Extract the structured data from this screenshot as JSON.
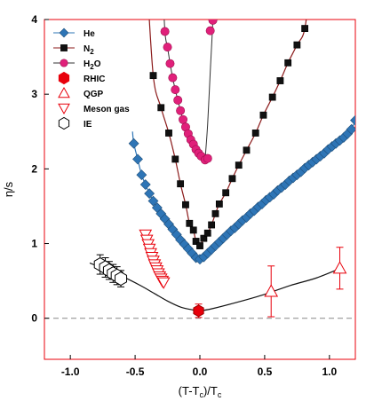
{
  "chart_data": {
    "type": "scatter",
    "xlabel_parts": [
      "(T-T",
      "c",
      ")/T",
      "c"
    ],
    "ylabel_parts": [
      "η/s"
    ],
    "xlim": [
      -1.2,
      1.2
    ],
    "ylim": [
      -0.55,
      4.0
    ],
    "x_ticks": [
      {
        "value": -1.0,
        "label": "-1.0"
      },
      {
        "value": -0.5,
        "label": "-0.5"
      },
      {
        "value": 0.0,
        "label": "0.0"
      },
      {
        "value": 0.5,
        "label": "0.5"
      },
      {
        "value": 1.0,
        "label": "1.0"
      }
    ],
    "y_ticks": [
      {
        "value": 0,
        "label": "0"
      },
      {
        "value": 1,
        "label": "1"
      },
      {
        "value": 2,
        "label": "2"
      },
      {
        "value": 3,
        "label": "3"
      },
      {
        "value": 4,
        "label": "4"
      }
    ],
    "frame_color": "#e8000b",
    "baseline": {
      "y": 0,
      "style": "dashed",
      "color": "#888888"
    },
    "series": [
      {
        "name_parts": [
          "He"
        ],
        "marker": "diamond",
        "color": "#2e75b6",
        "line_color": "#2e75b6",
        "x": [
          -0.51,
          -0.48,
          -0.45,
          -0.42,
          -0.39,
          -0.36,
          -0.33,
          -0.3,
          -0.27,
          -0.24,
          -0.21,
          -0.18,
          -0.15,
          -0.12,
          -0.09,
          -0.06,
          -0.03,
          0.0,
          0.03,
          0.06,
          0.09,
          0.12,
          0.15,
          0.18,
          0.21,
          0.24,
          0.27,
          0.3,
          0.33,
          0.36,
          0.39,
          0.42,
          0.45,
          0.48,
          0.51,
          0.54,
          0.57,
          0.6,
          0.63,
          0.66,
          0.69,
          0.72,
          0.75,
          0.78,
          0.81,
          0.84,
          0.87,
          0.9,
          0.93,
          0.96,
          0.99,
          1.02,
          1.05,
          1.08,
          1.11,
          1.14,
          1.17,
          1.2
        ],
        "y": [
          2.34,
          2.13,
          1.92,
          1.79,
          1.67,
          1.57,
          1.48,
          1.4,
          1.33,
          1.26,
          1.19,
          1.12,
          1.05,
          0.99,
          0.93,
          0.87,
          0.81,
          0.79,
          0.82,
          0.87,
          0.92,
          0.97,
          1.02,
          1.07,
          1.12,
          1.17,
          1.21,
          1.26,
          1.31,
          1.35,
          1.4,
          1.44,
          1.49,
          1.53,
          1.58,
          1.62,
          1.66,
          1.71,
          1.75,
          1.79,
          1.84,
          1.88,
          1.92,
          1.96,
          2.01,
          2.05,
          2.09,
          2.13,
          2.17,
          2.21,
          2.26,
          2.3,
          2.34,
          2.38,
          2.42,
          2.47,
          2.53,
          2.65
        ]
      },
      {
        "name_parts": [
          "N",
          "2"
        ],
        "marker": "square",
        "color": "#111111",
        "line_color": "#8b1a1a",
        "x": [
          -0.36,
          -0.3,
          -0.24,
          -0.19,
          -0.15,
          -0.11,
          -0.08,
          -0.05,
          -0.03,
          0.0,
          0.03,
          0.06,
          0.09,
          0.12,
          0.15,
          0.2,
          0.25,
          0.3,
          0.36,
          0.43,
          0.49,
          0.56,
          0.62,
          0.68,
          0.75,
          0.81
        ],
        "y": [
          3.25,
          2.82,
          2.48,
          2.13,
          1.8,
          1.52,
          1.27,
          1.18,
          1.03,
          0.97,
          1.07,
          1.14,
          1.25,
          1.4,
          1.53,
          1.68,
          1.87,
          2.05,
          2.25,
          2.48,
          2.72,
          2.96,
          3.18,
          3.42,
          3.66,
          3.88
        ]
      },
      {
        "name_parts": [
          "H",
          "2",
          "O"
        ],
        "marker": "circle",
        "color": "#e0207a",
        "line_color": "#333333",
        "x": [
          -0.27,
          -0.25,
          -0.23,
          -0.21,
          -0.19,
          -0.17,
          -0.15,
          -0.13,
          -0.11,
          -0.09,
          -0.07,
          -0.05,
          -0.03,
          -0.01,
          0.01,
          0.04,
          0.06,
          0.08,
          0.1
        ],
        "y": [
          3.84,
          3.63,
          3.41,
          3.22,
          3.06,
          2.92,
          2.78,
          2.66,
          2.56,
          2.47,
          2.39,
          2.33,
          2.26,
          2.21,
          2.17,
          2.12,
          2.14,
          3.85,
          3.99
        ]
      },
      {
        "name_parts": [
          "RHIC"
        ],
        "marker": "hexagon",
        "color": "#e8000b",
        "filled": true,
        "x": [
          -0.01
        ],
        "y": [
          0.1
        ],
        "err": [
          0.09
        ]
      },
      {
        "name_parts": [
          "QGP"
        ],
        "marker": "triangle-up",
        "color": "#e8000b",
        "filled": false,
        "x": [
          0.55,
          1.08
        ],
        "y": [
          0.36,
          0.67
        ],
        "err": [
          0.34,
          0.28
        ]
      },
      {
        "name_parts": [
          "Meson gas"
        ],
        "marker": "triangle-down",
        "color": "#e8000b",
        "filled": false,
        "x": [
          -0.42,
          -0.41,
          -0.4,
          -0.39,
          -0.38,
          -0.37,
          -0.36,
          -0.35,
          -0.34,
          -0.33,
          -0.32,
          -0.31,
          -0.3,
          -0.29,
          -0.28
        ],
        "y": [
          1.12,
          1.05,
          0.99,
          0.93,
          0.87,
          0.82,
          0.77,
          0.72,
          0.68,
          0.64,
          0.6,
          0.56,
          0.53,
          0.5,
          0.48
        ]
      },
      {
        "name_parts": [
          "IE"
        ],
        "marker": "hexagon",
        "color": "#000000",
        "filled": false,
        "x": [
          -0.77,
          -0.73,
          -0.7,
          -0.67,
          -0.64,
          -0.61
        ],
        "y": [
          0.72,
          0.68,
          0.64,
          0.6,
          0.57,
          0.53
        ],
        "err": [
          0.13,
          0.13,
          0.12,
          0.12,
          0.12,
          0.11
        ]
      }
    ],
    "theory_curve": {
      "color": "#111111",
      "x": [
        -0.85,
        -0.75,
        -0.65,
        -0.55,
        -0.45,
        -0.35,
        -0.25,
        -0.15,
        -0.05,
        0.0,
        0.1,
        0.3,
        0.5,
        0.7,
        0.9,
        1.1
      ],
      "y": [
        0.74,
        0.67,
        0.6,
        0.52,
        0.43,
        0.33,
        0.23,
        0.15,
        0.11,
        0.1,
        0.13,
        0.22,
        0.32,
        0.44,
        0.54,
        0.68
      ]
    },
    "legend": {
      "placement": "top-left"
    }
  }
}
